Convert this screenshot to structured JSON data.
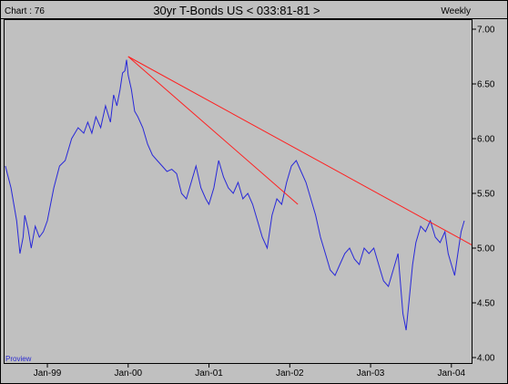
{
  "header": {
    "chart_id": "Chart : 76",
    "title": "30yr T-Bonds US < 033:81-81 >",
    "period": "Weekly"
  },
  "watermark": "Proview",
  "colors": {
    "background": "#c0c0c0",
    "series": "#2828d8",
    "trendline": "#ff2020",
    "axis": "#000000"
  },
  "chart_data": {
    "type": "line",
    "title": "30yr T-Bonds US < 033:81-81 >",
    "xlabel": "",
    "ylabel": "",
    "grid": false,
    "ylim": [
      4.0,
      7.0
    ],
    "xlim": [
      1998.47,
      2004.25
    ],
    "y_ticks": [
      4.0,
      4.5,
      5.0,
      5.5,
      6.0,
      6.5,
      7.0
    ],
    "y_tick_labels": [
      "4.00",
      "4.50",
      "5.00",
      "5.50",
      "6.00",
      "6.50",
      "7.00"
    ],
    "x_ticks": [
      {
        "label": "Jan-99",
        "x": 1999.0
      },
      {
        "label": "Jan-00",
        "x": 2000.0
      },
      {
        "label": "Jan-01",
        "x": 2001.0
      },
      {
        "label": "Jan-02",
        "x": 2002.0
      },
      {
        "label": "Jan-03",
        "x": 2003.0
      },
      {
        "label": "Jan-04",
        "x": 2004.0
      }
    ],
    "series": [
      {
        "x": [
          1998.48,
          1998.55,
          1998.62,
          1998.66,
          1998.7,
          1998.72,
          1998.76,
          1998.8,
          1998.85,
          1998.9,
          1998.95,
          1999.0,
          1999.08,
          1999.15,
          1999.22,
          1999.3,
          1999.38,
          1999.45,
          1999.5,
          1999.55,
          1999.6,
          1999.66,
          1999.72,
          1999.78,
          1999.82,
          1999.86,
          1999.9,
          1999.93,
          1999.96,
          1999.98,
          2000.0,
          2000.04,
          2000.08,
          2000.12,
          2000.18,
          2000.24,
          2000.3,
          2000.36,
          2000.42,
          2000.48,
          2000.54,
          2000.6,
          2000.66,
          2000.72,
          2000.78,
          2000.84,
          2000.9,
          2000.96,
          2001.0,
          2001.06,
          2001.12,
          2001.18,
          2001.24,
          2001.3,
          2001.36,
          2001.42,
          2001.48,
          2001.54,
          2001.6,
          2001.66,
          2001.72,
          2001.78,
          2001.84,
          2001.9,
          2001.96,
          2002.02,
          2002.08,
          2002.14,
          2002.2,
          2002.26,
          2002.32,
          2002.38,
          2002.44,
          2002.5,
          2002.56,
          2002.62,
          2002.68,
          2002.74,
          2002.8,
          2002.86,
          2002.92,
          2002.98,
          2003.04,
          2003.1,
          2003.16,
          2003.22,
          2003.28,
          2003.34,
          2003.4,
          2003.44,
          2003.48,
          2003.52,
          2003.56,
          2003.62,
          2003.68,
          2003.74,
          2003.8,
          2003.86,
          2003.92,
          2003.96,
          2004.0,
          2004.04,
          2004.08,
          2004.12,
          2004.16
        ],
        "values": [
          5.75,
          5.55,
          5.25,
          4.95,
          5.1,
          5.3,
          5.18,
          5.0,
          5.2,
          5.1,
          5.15,
          5.25,
          5.55,
          5.75,
          5.8,
          6.0,
          6.1,
          6.05,
          6.15,
          6.05,
          6.2,
          6.1,
          6.3,
          6.15,
          6.4,
          6.3,
          6.45,
          6.6,
          6.62,
          6.72,
          6.58,
          6.45,
          6.25,
          6.2,
          6.1,
          5.95,
          5.85,
          5.8,
          5.75,
          5.7,
          5.72,
          5.68,
          5.5,
          5.45,
          5.6,
          5.75,
          5.55,
          5.45,
          5.4,
          5.55,
          5.8,
          5.65,
          5.55,
          5.5,
          5.6,
          5.45,
          5.5,
          5.4,
          5.25,
          5.1,
          5.0,
          5.3,
          5.45,
          5.4,
          5.6,
          5.75,
          5.8,
          5.7,
          5.6,
          5.45,
          5.3,
          5.1,
          4.95,
          4.8,
          4.75,
          4.85,
          4.95,
          5.0,
          4.9,
          4.85,
          5.0,
          4.95,
          5.0,
          4.85,
          4.7,
          4.65,
          4.8,
          4.95,
          4.4,
          4.25,
          4.55,
          4.85,
          5.05,
          5.2,
          5.15,
          5.25,
          5.1,
          5.05,
          5.15,
          4.95,
          4.85,
          4.75,
          4.95,
          5.15,
          5.25
        ]
      }
    ],
    "trendlines": [
      {
        "from": {
          "x": 2000.0,
          "y": 6.75
        },
        "to": {
          "x": 2004.25,
          "y": 5.03
        }
      },
      {
        "from": {
          "x": 2000.0,
          "y": 6.75
        },
        "to": {
          "x": 2002.1,
          "y": 5.4
        }
      }
    ]
  }
}
